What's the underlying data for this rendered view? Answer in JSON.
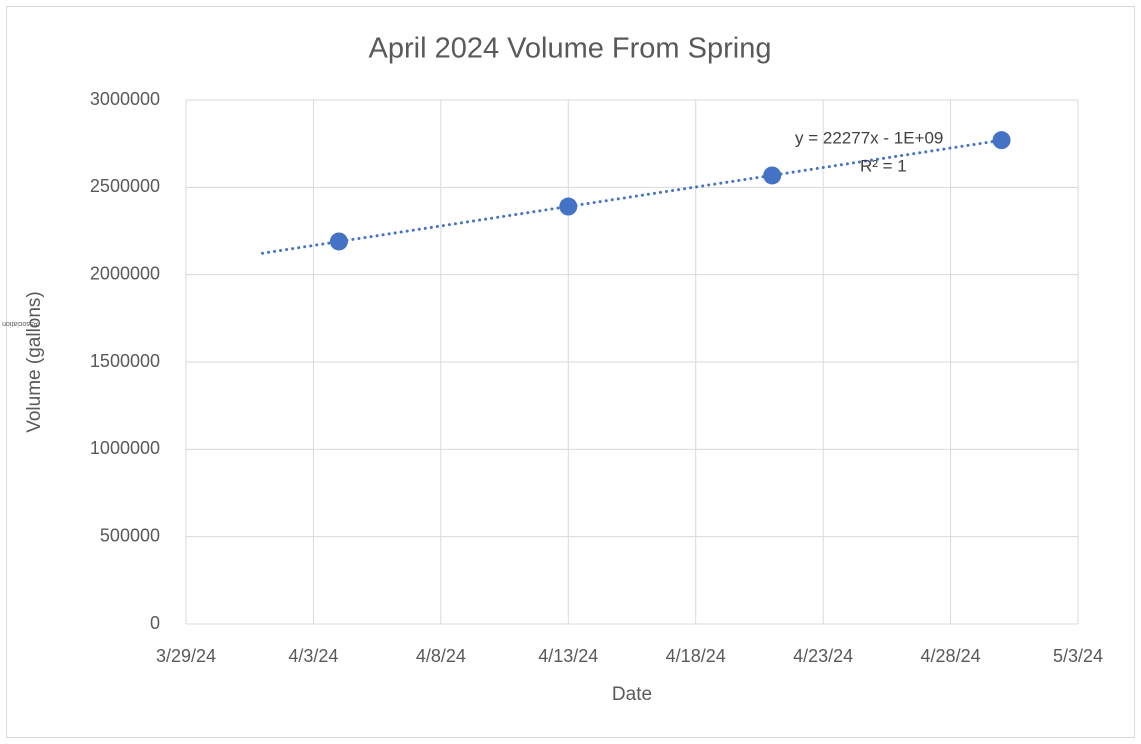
{
  "chart_data": {
    "type": "scatter",
    "title": "April 2024 Volume From Spring",
    "x_label": "Date",
    "y_label": "Volume (gallons)",
    "annotations": [
      "Association"
    ],
    "series": [
      {
        "name": "Volume",
        "color": "#4472c4",
        "x": [
          "2024-04-04",
          "2024-04-13",
          "2024-04-21",
          "2024-04-30"
        ],
        "values": [
          2190000,
          2390000,
          2568000,
          2770000
        ]
      }
    ],
    "trendline": {
      "type": "linear",
      "start": "2024-04-01",
      "end": "2024-04-30",
      "style": "dotted",
      "equation": "y = 22277x - 1E+09",
      "r_squared": "R² = 1"
    },
    "xlim": [
      "2024-03-29",
      "2024-05-03"
    ],
    "xticks": [
      {
        "value": "2024-03-29",
        "label": "3/29/24"
      },
      {
        "value": "2024-04-03",
        "label": "4/3/24"
      },
      {
        "value": "2024-04-08",
        "label": "4/8/24"
      },
      {
        "value": "2024-04-13",
        "label": "4/13/24"
      },
      {
        "value": "2024-04-18",
        "label": "4/18/24"
      },
      {
        "value": "2024-04-23",
        "label": "4/23/24"
      },
      {
        "value": "2024-04-28",
        "label": "4/28/24"
      },
      {
        "value": "2024-05-03",
        "label": "5/3/24"
      }
    ],
    "ylim": [
      0,
      3000000
    ],
    "yticks": [
      0,
      500000,
      1000000,
      1500000,
      2000000,
      2500000,
      3000000
    ],
    "grid": true
  }
}
